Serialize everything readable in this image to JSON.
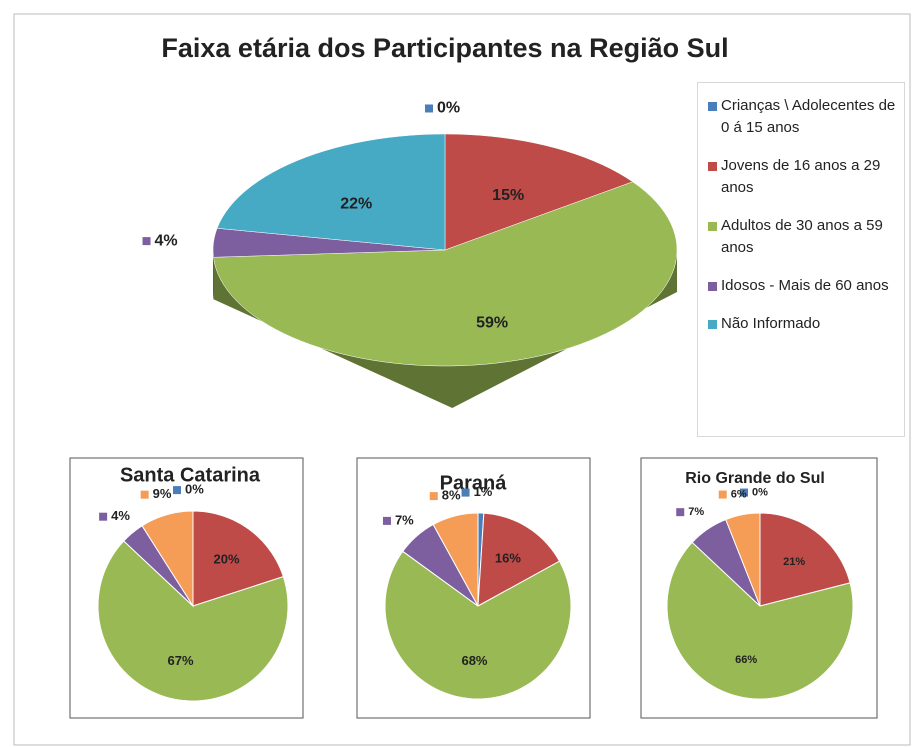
{
  "chart_data": [
    {
      "type": "pie3d",
      "title": "Faixa etária dos Participantes na Região Sul",
      "categories": [
        "Crianças \\ Adolecentes de 0 á 15 anos",
        "Jovens de 16 anos a 29 anos",
        "Adultos de 30 anos a 59 anos",
        "Idosos  -  Mais de 60 anos",
        "Não Informado"
      ],
      "values": [
        0,
        15,
        59,
        4,
        22
      ],
      "value_labels": [
        "0%",
        "15%",
        "59%",
        "4%",
        "22%"
      ],
      "colors": [
        "#4a7ebb",
        "#be4b48",
        "#98b954",
        "#7d5fa0",
        "#46aac5"
      ],
      "legend": "right"
    },
    {
      "type": "pie",
      "title": "Santa Catarina",
      "values": [
        0,
        20,
        67,
        4,
        9
      ],
      "value_labels": [
        "0%",
        "20%",
        "67%",
        "4%",
        "9%"
      ],
      "colors": [
        "#4a7ebb",
        "#be4b48",
        "#98b954",
        "#7d5fa0",
        "#f59d56"
      ]
    },
    {
      "type": "pie",
      "title": "Paraná",
      "values": [
        1,
        16,
        68,
        7,
        8
      ],
      "value_labels": [
        "1%",
        "16%",
        "68%",
        "7%",
        "8%"
      ],
      "colors": [
        "#4a7ebb",
        "#be4b48",
        "#98b954",
        "#7d5fa0",
        "#f59d56"
      ]
    },
    {
      "type": "pie",
      "title": "Rio Grande do Sul",
      "values": [
        0,
        21,
        66,
        7,
        6
      ],
      "value_labels": [
        "0%",
        "21%",
        "66%",
        "7%",
        "6%"
      ],
      "colors": [
        "#4a7ebb",
        "#be4b48",
        "#98b954",
        "#7d5fa0",
        "#f59d56"
      ]
    }
  ]
}
